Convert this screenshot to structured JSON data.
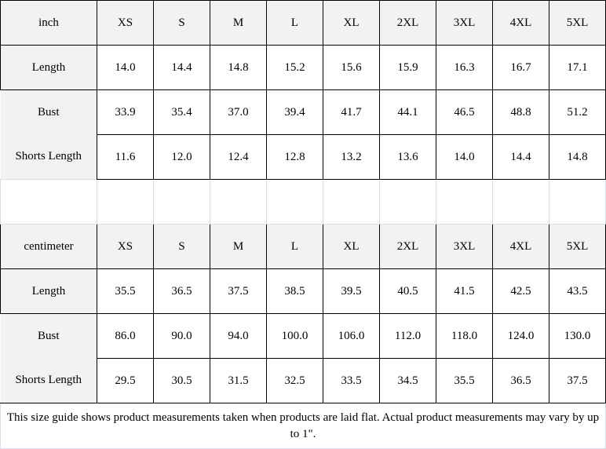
{
  "sizes": [
    "XS",
    "S",
    "M",
    "L",
    "XL",
    "2XL",
    "3XL",
    "4XL",
    "5XL"
  ],
  "inch": {
    "unit": "inch",
    "rows": [
      {
        "label": "Length",
        "values": [
          "14.0",
          "14.4",
          "14.8",
          "15.2",
          "15.6",
          "15.9",
          "16.3",
          "16.7",
          "17.1"
        ]
      },
      {
        "label": "Bust",
        "values": [
          "33.9",
          "35.4",
          "37.0",
          "39.4",
          "41.7",
          "44.1",
          "46.5",
          "48.8",
          "51.2"
        ]
      },
      {
        "label": "Shorts Length",
        "values": [
          "11.6",
          "12.0",
          "12.4",
          "12.8",
          "13.2",
          "13.6",
          "14.0",
          "14.4",
          "14.8"
        ]
      }
    ]
  },
  "cm": {
    "unit": "centimeter",
    "rows": [
      {
        "label": "Length",
        "values": [
          "35.5",
          "36.5",
          "37.5",
          "38.5",
          "39.5",
          "40.5",
          "41.5",
          "42.5",
          "43.5"
        ]
      },
      {
        "label": "Bust",
        "values": [
          "86.0",
          "90.0",
          "94.0",
          "100.0",
          "106.0",
          "112.0",
          "118.0",
          "124.0",
          "130.0"
        ]
      },
      {
        "label": "Shorts Length",
        "values": [
          "29.5",
          "30.5",
          "31.5",
          "32.5",
          "33.5",
          "34.5",
          "35.5",
          "36.5",
          "37.5"
        ]
      }
    ]
  },
  "footer": "This size guide shows product measurements taken when products are laid flat. Actual product measurements may vary by up to 1\"."
}
